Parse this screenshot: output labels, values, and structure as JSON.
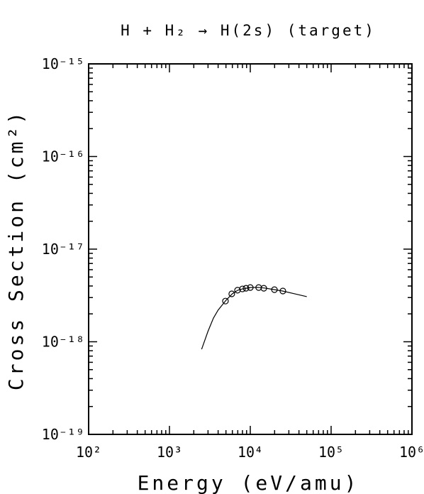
{
  "chart_data": {
    "type": "line",
    "title": "H + H₂ → H(2s) (target)",
    "x_label": "Energy (eV/amu)",
    "y_label": "Cross Section (cm²)",
    "xscale": "log",
    "yscale": "log",
    "xlim": [
      100,
      1000000
    ],
    "ylim": [
      1e-19,
      1e-15
    ],
    "xticks": [
      {
        "value": 100,
        "label": "10²"
      },
      {
        "value": 1000,
        "label": "10³"
      },
      {
        "value": 10000,
        "label": "10⁴"
      },
      {
        "value": 100000,
        "label": "10⁵"
      },
      {
        "value": 1000000,
        "label": "10⁶"
      }
    ],
    "yticks": [
      {
        "value": 1e-19,
        "label": "10⁻¹⁹"
      },
      {
        "value": 1e-18,
        "label": "10⁻¹⁸"
      },
      {
        "value": 1e-17,
        "label": "10⁻¹⁷"
      },
      {
        "value": 1e-16,
        "label": "10⁻¹⁶"
      },
      {
        "value": 1e-15,
        "label": "10⁻¹⁵"
      }
    ],
    "series": [
      {
        "color": "#000000",
        "marker": "none",
        "x": [
          2500,
          3000,
          3500,
          4000,
          5000,
          6000,
          7000,
          8000,
          10000,
          12500,
          15000,
          20000,
          25000,
          35000,
          50000
        ],
        "values": [
          8.3e-19,
          1.3e-18,
          1.8e-18,
          2.2e-18,
          2.8e-18,
          3.3e-18,
          3.6e-18,
          3.72e-18,
          3.85e-18,
          3.86e-18,
          3.8e-18,
          3.65e-18,
          3.53e-18,
          3.3e-18,
          3.07e-18
        ]
      },
      {
        "color": "#000000",
        "marker": "circle",
        "x": [
          4930,
          5900,
          6950,
          8000,
          8860,
          10000,
          12700,
          14700,
          19900,
          25300
        ],
        "values": [
          2.75e-18,
          3.29e-18,
          3.6e-18,
          3.72e-18,
          3.78e-18,
          3.85e-18,
          3.85e-18,
          3.78e-18,
          3.65e-18,
          3.53e-18
        ]
      }
    ]
  }
}
